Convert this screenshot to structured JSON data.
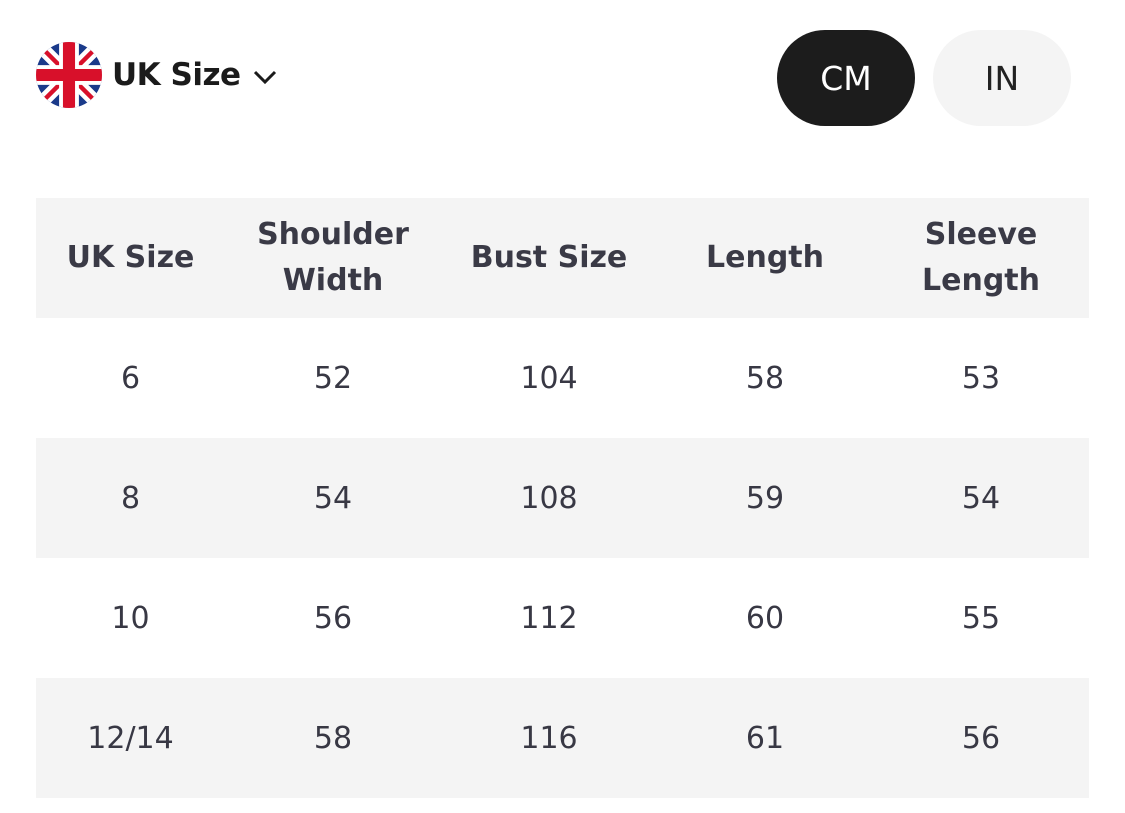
{
  "region": {
    "label": "UK Size",
    "flag_icon": "uk-flag-icon"
  },
  "units": {
    "options": [
      "CM",
      "IN"
    ],
    "selected": "CM"
  },
  "table": {
    "headers": [
      [
        "UK Size"
      ],
      [
        "Shoulder",
        "Width"
      ],
      [
        "Bust Size"
      ],
      [
        "Length"
      ],
      [
        "Sleeve",
        "Length"
      ]
    ],
    "rows": [
      [
        "6",
        "52",
        "104",
        "58",
        "53"
      ],
      [
        "8",
        "54",
        "108",
        "59",
        "54"
      ],
      [
        "10",
        "56",
        "112",
        "60",
        "55"
      ],
      [
        "12/14",
        "58",
        "116",
        "61",
        "56"
      ]
    ]
  },
  "colors": {
    "selected_bg": "#1c1c1c",
    "unselected_bg": "#f4f4f4",
    "stripe": "#f4f4f4"
  }
}
